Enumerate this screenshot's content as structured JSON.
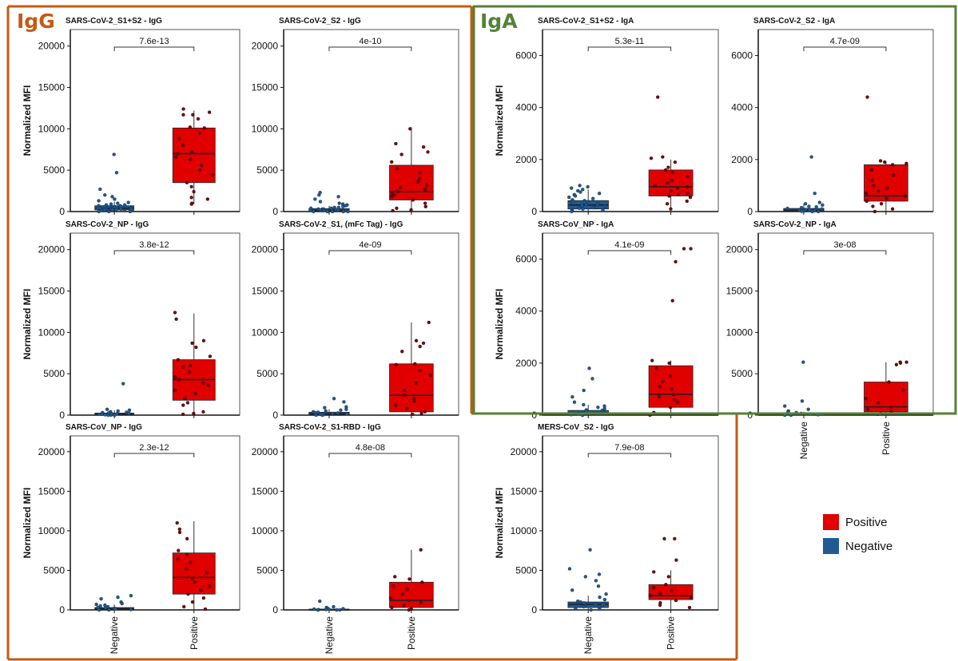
{
  "groups": {
    "igg_label": "IgG",
    "iga_label": "IgA",
    "igg_color": "#C55A11",
    "iga_color": "#548235"
  },
  "colors": {
    "positive": "#E00000",
    "negative": "#1F5A96"
  },
  "legend": [
    {
      "label": "Positive",
      "color": "#E00000"
    },
    {
      "label": "Negative",
      "color": "#1F5A96"
    }
  ],
  "chart_data": [
    {
      "type": "box",
      "title": "SARS-CoV-2_S1+S2 - IgG",
      "ylabel": "Normalized MFI",
      "categories": [
        "Negative",
        "Positive"
      ],
      "ylim": [
        0,
        22000
      ],
      "yticks": [
        0,
        5000,
        10000,
        15000,
        20000
      ],
      "pvalue": "7.6e-13",
      "show_xlabels": false,
      "boxes": [
        {
          "name": "Negative",
          "q1": 200,
          "median": 400,
          "q3": 700,
          "whisker_low": 0,
          "whisker_high": 1200,
          "points": [
            6900,
            4700,
            2700,
            2000,
            1800,
            1500,
            1300,
            1100,
            1000,
            900,
            800,
            800,
            700,
            700,
            600,
            600,
            600,
            500,
            500,
            500,
            500,
            400,
            400,
            400,
            400,
            400,
            300,
            300,
            300,
            300,
            300,
            300,
            200,
            200,
            200,
            200,
            200,
            100,
            100,
            100,
            100,
            0,
            0,
            0
          ]
        },
        {
          "name": "Positive",
          "q1": 3500,
          "median": 7000,
          "q3": 10100,
          "whisker_low": 900,
          "whisker_high": 12200,
          "points": [
            12400,
            12000,
            11700,
            11700,
            11200,
            10200,
            10100,
            9500,
            8800,
            8000,
            7200,
            7000,
            6600,
            6300,
            5600,
            5000,
            4400,
            3500,
            3000,
            2400,
            1700,
            1500,
            1000,
            900
          ]
        }
      ]
    },
    {
      "type": "box",
      "title": "SARS-CoV-2_S2 - IgG",
      "ylabel": "",
      "categories": [
        "Negative",
        "Positive"
      ],
      "ylim": [
        0,
        22000
      ],
      "yticks": [
        0,
        5000,
        10000,
        15000,
        20000
      ],
      "pvalue": "4e-10",
      "show_xlabels": false,
      "boxes": [
        {
          "name": "Negative",
          "q1": 50,
          "median": 150,
          "q3": 350,
          "whisker_low": 0,
          "whisker_high": 700,
          "points": [
            2300,
            2000,
            1800,
            1500,
            1200,
            1000,
            900,
            800,
            700,
            600,
            500,
            500,
            400,
            400,
            300,
            300,
            300,
            200,
            200,
            200,
            200,
            100,
            100,
            100,
            100,
            100,
            0,
            0,
            0,
            0,
            0
          ]
        },
        {
          "name": "Positive",
          "q1": 1400,
          "median": 2400,
          "q3": 5600,
          "whisker_low": 0,
          "whisker_high": 10200,
          "points": [
            10000,
            8200,
            7800,
            7200,
            6900,
            6000,
            5200,
            4700,
            4000,
            3600,
            3200,
            2900,
            2700,
            2400,
            2200,
            2000,
            1800,
            1400,
            1000,
            600,
            400,
            200,
            100
          ]
        }
      ]
    },
    {
      "type": "box",
      "title": "SARS-CoV-2_S1+S2 - IgA",
      "ylabel": "Normalized MFI",
      "categories": [
        "Negative",
        "Positive"
      ],
      "ylim": [
        0,
        7000
      ],
      "yticks": [
        0,
        2000,
        4000,
        6000
      ],
      "pvalue": "5.3e-11",
      "show_xlabels": false,
      "boxes": [
        {
          "name": "Negative",
          "q1": 100,
          "median": 250,
          "q3": 420,
          "whisker_low": 0,
          "whisker_high": 850,
          "points": [
            1000,
            950,
            900,
            850,
            800,
            750,
            700,
            650,
            600,
            550,
            500,
            450,
            420,
            400,
            380,
            350,
            320,
            300,
            280,
            250,
            230,
            200,
            180,
            150,
            130,
            100,
            80,
            50,
            30,
            0
          ]
        },
        {
          "name": "Positive",
          "q1": 600,
          "median": 950,
          "q3": 1600,
          "whisker_low": 100,
          "whisker_high": 2000,
          "points": [
            4400,
            2100,
            2050,
            1900,
            1700,
            1600,
            1500,
            1350,
            1200,
            1100,
            1000,
            950,
            900,
            800,
            700,
            650,
            600,
            550,
            400,
            300,
            100
          ]
        }
      ]
    },
    {
      "type": "box",
      "title": "SARS-CoV-2_S2 - IgA",
      "ylabel": "",
      "categories": [
        "Negative",
        "Positive"
      ],
      "ylim": [
        0,
        7000
      ],
      "yticks": [
        0,
        2000,
        4000,
        6000
      ],
      "pvalue": "4.7e-09",
      "show_xlabels": false,
      "boxes": [
        {
          "name": "Negative",
          "q1": 10,
          "median": 50,
          "q3": 120,
          "whisker_low": 0,
          "whisker_high": 300,
          "points": [
            2100,
            700,
            350,
            300,
            250,
            200,
            180,
            150,
            120,
            100,
            80,
            60,
            50,
            40,
            30,
            20,
            10,
            0,
            0
          ]
        },
        {
          "name": "Positive",
          "q1": 400,
          "median": 600,
          "q3": 1800,
          "whisker_low": 0,
          "whisker_high": 1950,
          "points": [
            4400,
            1950,
            1900,
            1850,
            1800,
            1600,
            1400,
            1200,
            1000,
            900,
            800,
            700,
            600,
            500,
            400,
            300,
            200,
            100,
            0
          ]
        }
      ]
    },
    {
      "type": "box",
      "title": "SARS-CoV-2_NP - IgG",
      "ylabel": "Normalized MFI",
      "categories": [
        "Negative",
        "Positive"
      ],
      "ylim": [
        0,
        22000
      ],
      "yticks": [
        0,
        5000,
        10000,
        15000,
        20000
      ],
      "pvalue": "3.8e-12",
      "show_xlabels": false,
      "boxes": [
        {
          "name": "Negative",
          "q1": 50,
          "median": 100,
          "q3": 250,
          "whisker_low": 0,
          "whisker_high": 600,
          "points": [
            3800,
            700,
            600,
            500,
            400,
            350,
            300,
            250,
            200,
            200,
            150,
            100,
            100,
            50,
            50,
            0,
            0,
            0
          ]
        },
        {
          "name": "Positive",
          "q1": 1800,
          "median": 4300,
          "q3": 6700,
          "whisker_low": 100,
          "whisker_high": 12300,
          "points": [
            12400,
            11600,
            9000,
            8700,
            8200,
            7100,
            6700,
            6000,
            5800,
            5200,
            4600,
            4300,
            3900,
            3600,
            3000,
            2600,
            2000,
            1500,
            1200,
            400,
            200,
            100
          ]
        }
      ]
    },
    {
      "type": "box",
      "title": "SARS-CoV-2_S1, (mFc Tag) - IgG",
      "ylabel": "",
      "categories": [
        "Negative",
        "Positive"
      ],
      "ylim": [
        0,
        22000
      ],
      "yticks": [
        0,
        5000,
        10000,
        15000,
        20000
      ],
      "pvalue": "4e-09",
      "show_xlabels": false,
      "boxes": [
        {
          "name": "Negative",
          "q1": 50,
          "median": 150,
          "q3": 350,
          "whisker_low": 0,
          "whisker_high": 700,
          "points": [
            2000,
            1600,
            1000,
            900,
            700,
            600,
            500,
            400,
            350,
            300,
            250,
            200,
            150,
            100,
            50,
            0,
            0
          ]
        },
        {
          "name": "Positive",
          "q1": 400,
          "median": 2400,
          "q3": 6200,
          "whisker_low": 0,
          "whisker_high": 11200,
          "points": [
            11200,
            9000,
            8700,
            8300,
            7700,
            6200,
            6100,
            5400,
            4800,
            3900,
            3000,
            2400,
            2000,
            1700,
            1200,
            800,
            400,
            200,
            100
          ]
        }
      ]
    },
    {
      "type": "box",
      "title": "SARS-CoV_NP - IgA",
      "ylabel": "Normalized MFI",
      "categories": [
        "Negative",
        "Positive"
      ],
      "ylim": [
        0,
        7000
      ],
      "yticks": [
        0,
        2000,
        4000,
        6000
      ],
      "pvalue": "4.1e-09",
      "show_xlabels": false,
      "boxes": [
        {
          "name": "Negative",
          "q1": 20,
          "median": 80,
          "q3": 180,
          "whisker_low": 0,
          "whisker_high": 400,
          "points": [
            1800,
            1400,
            950,
            700,
            500,
            400,
            350,
            300,
            250,
            200,
            180,
            150,
            120,
            100,
            80,
            60,
            40,
            20,
            0,
            0
          ]
        },
        {
          "name": "Positive",
          "q1": 300,
          "median": 800,
          "q3": 1900,
          "whisker_low": 0,
          "whisker_high": 2100,
          "points": [
            6400,
            6400,
            5900,
            4400,
            2100,
            2000,
            1800,
            1500,
            1300,
            1100,
            1000,
            800,
            700,
            600,
            500,
            300,
            100,
            0
          ]
        }
      ]
    },
    {
      "type": "box",
      "title": "SARS-CoV-2_NP - IgA",
      "ylabel": "",
      "categories": [
        "Negative",
        "Positive"
      ],
      "ylim": [
        0,
        22000
      ],
      "yticks": [
        0,
        5000,
        10000,
        15000,
        20000
      ],
      "pvalue": "3e-08",
      "show_xlabels": true,
      "boxes": [
        {
          "name": "Negative",
          "q1": 0,
          "median": 50,
          "q3": 150,
          "whisker_low": 0,
          "whisker_high": 400,
          "points": [
            6400,
            1700,
            1100,
            700,
            500,
            400,
            300,
            200,
            150,
            100,
            50,
            0,
            0
          ]
        },
        {
          "name": "Positive",
          "q1": 400,
          "median": 1000,
          "q3": 4000,
          "whisker_low": 0,
          "whisker_high": 6400,
          "points": [
            6400,
            6400,
            6300,
            6100,
            4000,
            3000,
            2000,
            1500,
            1000,
            700,
            400,
            200,
            100
          ]
        }
      ]
    },
    {
      "type": "box",
      "title": "SARS-CoV_NP - IgG",
      "ylabel": "Normalized MFI",
      "categories": [
        "Negative",
        "Positive"
      ],
      "ylim": [
        0,
        22000
      ],
      "yticks": [
        0,
        5000,
        10000,
        15000,
        20000
      ],
      "pvalue": "2.3e-12",
      "show_xlabels": true,
      "boxes": [
        {
          "name": "Negative",
          "q1": 50,
          "median": 150,
          "q3": 300,
          "whisker_low": 0,
          "whisker_high": 700,
          "points": [
            1800,
            1600,
            1400,
            1000,
            800,
            700,
            600,
            500,
            400,
            300,
            250,
            200,
            150,
            100,
            50,
            0,
            0
          ]
        },
        {
          "name": "Positive",
          "q1": 2000,
          "median": 4100,
          "q3": 7200,
          "whisker_low": 100,
          "whisker_high": 11200,
          "points": [
            11000,
            10200,
            9800,
            9000,
            7500,
            7000,
            6500,
            6000,
            5200,
            4700,
            4000,
            3500,
            3000,
            2500,
            2000,
            1500,
            1000,
            400,
            100
          ]
        }
      ]
    },
    {
      "type": "box",
      "title": "SARS-CoV-2_S1-RBD - IgG",
      "ylabel": "",
      "categories": [
        "Negative",
        "Positive"
      ],
      "ylim": [
        0,
        22000
      ],
      "yticks": [
        0,
        5000,
        10000,
        15000,
        20000
      ],
      "pvalue": "4.8e-08",
      "show_xlabels": true,
      "boxes": [
        {
          "name": "Negative",
          "q1": 0,
          "median": 50,
          "q3": 100,
          "whisker_low": 0,
          "whisker_high": 250,
          "points": [
            1100,
            400,
            300,
            200,
            150,
            100,
            80,
            50,
            30,
            0,
            0,
            0
          ]
        },
        {
          "name": "Positive",
          "q1": 300,
          "median": 1200,
          "q3": 3500,
          "whisker_low": 0,
          "whisker_high": 7600,
          "points": [
            7600,
            4200,
            3900,
            3500,
            3000,
            2600,
            2000,
            1500,
            1200,
            900,
            600,
            300,
            100,
            0
          ]
        }
      ]
    },
    {
      "type": "box",
      "title": "MERS-CoV_S2 - IgG",
      "ylabel": "Normalized MFI",
      "categories": [
        "Negative",
        "Positive"
      ],
      "ylim": [
        0,
        22000
      ],
      "yticks": [
        0,
        5000,
        10000,
        15000,
        20000
      ],
      "pvalue": "7.9e-08",
      "show_xlabels": true,
      "boxes": [
        {
          "name": "Negative",
          "q1": 300,
          "median": 700,
          "q3": 1000,
          "whisker_low": 0,
          "whisker_high": 1800,
          "points": [
            7600,
            5200,
            4500,
            4200,
            3700,
            3000,
            2500,
            2000,
            1600,
            1300,
            1100,
            1000,
            900,
            800,
            700,
            600,
            500,
            400,
            300,
            200,
            100,
            0
          ]
        },
        {
          "name": "Positive",
          "q1": 1300,
          "median": 1800,
          "q3": 3200,
          "whisker_low": 100,
          "whisker_high": 5000,
          "points": [
            9000,
            9000,
            6300,
            4800,
            4200,
            3200,
            2800,
            2400,
            2100,
            1800,
            1500,
            1200,
            900,
            600,
            300
          ]
        }
      ]
    }
  ]
}
